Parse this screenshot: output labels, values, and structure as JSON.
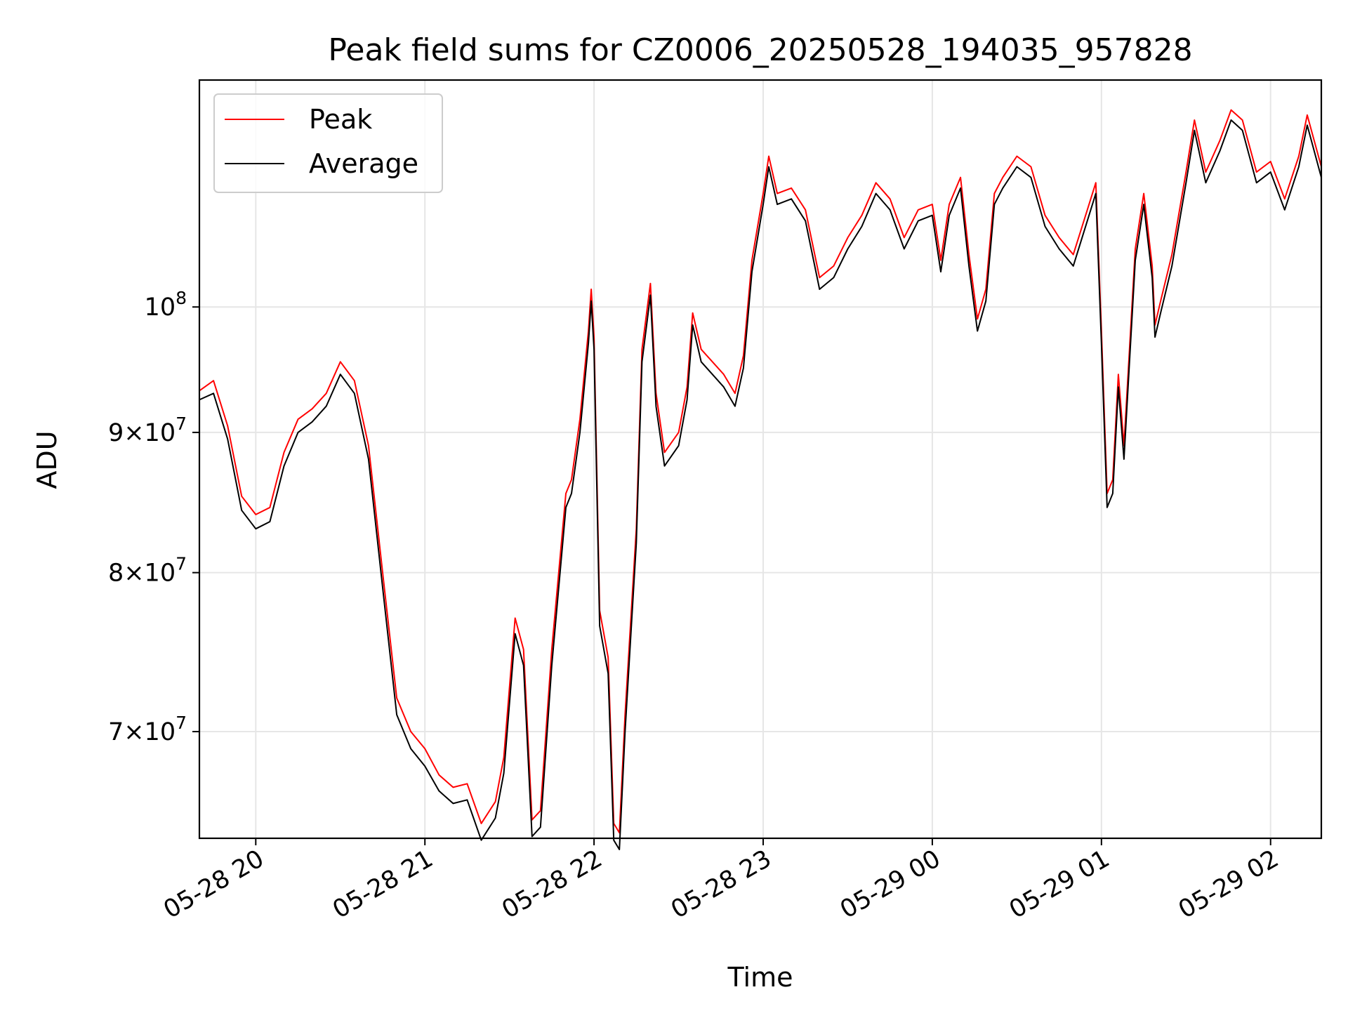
{
  "chart_data": {
    "type": "line",
    "title": "Peak field sums for CZ0006_20250528_194035_957828",
    "xlabel": "Time",
    "ylabel": "ADU",
    "y_scale": "log",
    "grid": true,
    "legend_placement": "top-left",
    "xlim": [
      "2025-05-28 19:40",
      "2025-05-29 02:18"
    ],
    "ylim": [
      64000000,
      121000000
    ],
    "x_ticks": [
      {
        "value": "2025-05-28 20:00",
        "label": "05-28 20"
      },
      {
        "value": "2025-05-28 21:00",
        "label": "05-28 21"
      },
      {
        "value": "2025-05-28 22:00",
        "label": "05-28 22"
      },
      {
        "value": "2025-05-28 23:00",
        "label": "05-28 23"
      },
      {
        "value": "2025-05-29 00:00",
        "label": "05-29 00"
      },
      {
        "value": "2025-05-29 01:00",
        "label": "05-29 01"
      },
      {
        "value": "2025-05-29 02:00",
        "label": "05-29 02"
      }
    ],
    "y_ticks": [
      {
        "value": 70000000,
        "base": "7",
        "exp": "7"
      },
      {
        "value": 80000000,
        "base": "8",
        "exp": "7"
      },
      {
        "value": 90000000,
        "base": "9",
        "exp": "7"
      },
      {
        "value": 100000000,
        "base": "",
        "exp": "8"
      }
    ],
    "series": [
      {
        "name": "Peak",
        "color": "#ff0000",
        "points": [
          [
            "2025-05-28 19:40",
            93200000.0
          ],
          [
            "2025-05-28 19:45",
            94000000.0
          ],
          [
            "2025-05-28 19:50",
            90500000.0
          ],
          [
            "2025-05-28 19:55",
            85300000.0
          ],
          [
            "2025-05-28 20:00",
            84000000.0
          ],
          [
            "2025-05-28 20:05",
            84500000.0
          ],
          [
            "2025-05-28 20:10",
            88500000.0
          ],
          [
            "2025-05-28 20:15",
            91000000.0
          ],
          [
            "2025-05-28 20:20",
            91800000.0
          ],
          [
            "2025-05-28 20:25",
            93000000.0
          ],
          [
            "2025-05-28 20:30",
            95500000.0
          ],
          [
            "2025-05-28 20:35",
            94000000.0
          ],
          [
            "2025-05-28 20:40",
            89000000.0
          ],
          [
            "2025-05-28 20:45",
            80000000.0
          ],
          [
            "2025-05-28 20:50",
            72000000.0
          ],
          [
            "2025-05-28 20:55",
            70000000.0
          ],
          [
            "2025-05-28 21:00",
            69000000.0
          ],
          [
            "2025-05-28 21:05",
            67500000.0
          ],
          [
            "2025-05-28 21:10",
            66800000.0
          ],
          [
            "2025-05-28 21:15",
            67000000.0
          ],
          [
            "2025-05-28 21:20",
            64800000.0
          ],
          [
            "2025-05-28 21:25",
            66000000.0
          ],
          [
            "2025-05-28 21:28",
            68500000.0
          ],
          [
            "2025-05-28 21:32",
            77000000.0
          ],
          [
            "2025-05-28 21:35",
            75000000.0
          ],
          [
            "2025-05-28 21:38",
            65000000.0
          ],
          [
            "2025-05-28 21:41",
            65500000.0
          ],
          [
            "2025-05-28 21:45",
            75000000.0
          ],
          [
            "2025-05-28 21:50",
            85500000.0
          ],
          [
            "2025-05-28 21:52",
            86500000.0
          ],
          [
            "2025-05-28 21:55",
            91000000.0
          ],
          [
            "2025-05-28 21:58",
            98000000.0
          ],
          [
            "2025-05-28 21:59",
            101500000.0
          ],
          [
            "2025-05-28 22:00",
            97500000.0
          ],
          [
            "2025-05-28 22:02",
            77500000.0
          ],
          [
            "2025-05-28 22:05",
            74500000.0
          ],
          [
            "2025-05-28 22:07",
            64800000.0
          ],
          [
            "2025-05-28 22:09",
            64300000.0
          ],
          [
            "2025-05-28 22:11",
            71000000.0
          ],
          [
            "2025-05-28 22:15",
            83000000.0
          ],
          [
            "2025-05-28 22:17",
            96500000.0
          ],
          [
            "2025-05-28 22:20",
            102000000.0
          ],
          [
            "2025-05-28 22:22",
            93000000.0
          ],
          [
            "2025-05-28 22:25",
            88500000.0
          ],
          [
            "2025-05-28 22:30",
            90000000.0
          ],
          [
            "2025-05-28 22:33",
            93500000.0
          ],
          [
            "2025-05-28 22:35",
            99500000.0
          ],
          [
            "2025-05-28 22:38",
            96500000.0
          ],
          [
            "2025-05-28 22:42",
            95500000.0
          ],
          [
            "2025-05-28 22:46",
            94500000.0
          ],
          [
            "2025-05-28 22:50",
            93000000.0
          ],
          [
            "2025-05-28 22:53",
            96000000.0
          ],
          [
            "2025-05-28 22:56",
            104000000.0
          ],
          [
            "2025-05-28 23:00",
            110000000.0
          ],
          [
            "2025-05-28 23:02",
            113500000.0
          ],
          [
            "2025-05-28 23:05",
            110000000.0
          ],
          [
            "2025-05-28 23:10",
            110500000.0
          ],
          [
            "2025-05-28 23:15",
            108500000.0
          ],
          [
            "2025-05-28 23:20",
            102500000.0
          ],
          [
            "2025-05-28 23:25",
            103500000.0
          ],
          [
            "2025-05-28 23:30",
            106000000.0
          ],
          [
            "2025-05-28 23:35",
            108000000.0
          ],
          [
            "2025-05-28 23:40",
            111000000.0
          ],
          [
            "2025-05-28 23:45",
            109500000.0
          ],
          [
            "2025-05-28 23:50",
            106000000.0
          ],
          [
            "2025-05-28 23:55",
            108500000.0
          ],
          [
            "2025-05-29 00:00",
            109000000.0
          ],
          [
            "2025-05-29 00:03",
            104000000.0
          ],
          [
            "2025-05-29 00:06",
            109000000.0
          ],
          [
            "2025-05-29 00:10",
            111500000.0
          ],
          [
            "2025-05-29 00:13",
            104500000.0
          ],
          [
            "2025-05-29 00:16",
            99000000.0
          ],
          [
            "2025-05-29 00:19",
            101500000.0
          ],
          [
            "2025-05-29 00:22",
            110000000.0
          ],
          [
            "2025-05-29 00:25",
            111500000.0
          ],
          [
            "2025-05-29 00:30",
            113500000.0
          ],
          [
            "2025-05-29 00:35",
            112500000.0
          ],
          [
            "2025-05-29 00:40",
            108000000.0
          ],
          [
            "2025-05-29 00:45",
            106000000.0
          ],
          [
            "2025-05-29 00:50",
            104500000.0
          ],
          [
            "2025-05-29 00:55",
            108500000.0
          ],
          [
            "2025-05-29 00:58",
            111000000.0
          ],
          [
            "2025-05-29 01:00",
            98000000.0
          ],
          [
            "2025-05-29 01:02",
            85500000.0
          ],
          [
            "2025-05-29 01:04",
            86500000.0
          ],
          [
            "2025-05-29 01:06",
            94500000.0
          ],
          [
            "2025-05-29 01:08",
            89000000.0
          ],
          [
            "2025-05-29 01:12",
            105000000.0
          ],
          [
            "2025-05-29 01:15",
            110000000.0
          ],
          [
            "2025-05-29 01:18",
            103500000.0
          ],
          [
            "2025-05-29 01:19",
            98500000.0
          ],
          [
            "2025-05-29 01:21",
            100500000.0
          ],
          [
            "2025-05-29 01:25",
            104500000.0
          ],
          [
            "2025-05-29 01:30",
            112000000.0
          ],
          [
            "2025-05-29 01:33",
            117000000.0
          ],
          [
            "2025-05-29 01:37",
            112000000.0
          ],
          [
            "2025-05-29 01:42",
            115000000.0
          ],
          [
            "2025-05-29 01:46",
            118000000.0
          ],
          [
            "2025-05-29 01:50",
            117000000.0
          ],
          [
            "2025-05-29 01:55",
            112000000.0
          ],
          [
            "2025-05-29 02:00",
            113000000.0
          ],
          [
            "2025-05-29 02:05",
            109500000.0
          ],
          [
            "2025-05-29 02:10",
            113500000.0
          ],
          [
            "2025-05-29 02:13",
            117500000.0
          ],
          [
            "2025-05-29 02:18",
            112500000.0
          ]
        ]
      },
      {
        "name": "Average",
        "color": "#000000",
        "points": [
          [
            "2025-05-28 19:40",
            92500000.0
          ],
          [
            "2025-05-28 19:45",
            93000000.0
          ],
          [
            "2025-05-28 19:50",
            89500000.0
          ],
          [
            "2025-05-28 19:55",
            84300000.0
          ],
          [
            "2025-05-28 20:00",
            83000000.0
          ],
          [
            "2025-05-28 20:05",
            83500000.0
          ],
          [
            "2025-05-28 20:10",
            87500000.0
          ],
          [
            "2025-05-28 20:15",
            90000000.0
          ],
          [
            "2025-05-28 20:20",
            90800000.0
          ],
          [
            "2025-05-28 20:25",
            92000000.0
          ],
          [
            "2025-05-28 20:30",
            94500000.0
          ],
          [
            "2025-05-28 20:35",
            93000000.0
          ],
          [
            "2025-05-28 20:40",
            88000000.0
          ],
          [
            "2025-05-28 20:45",
            79000000.0
          ],
          [
            "2025-05-28 20:50",
            71000000.0
          ],
          [
            "2025-05-28 20:55",
            69000000.0
          ],
          [
            "2025-05-28 21:00",
            68000000.0
          ],
          [
            "2025-05-28 21:05",
            66600000.0
          ],
          [
            "2025-05-28 21:10",
            65900000.0
          ],
          [
            "2025-05-28 21:15",
            66100000.0
          ],
          [
            "2025-05-28 21:20",
            63900000.0
          ],
          [
            "2025-05-28 21:25",
            65100000.0
          ],
          [
            "2025-05-28 21:28",
            67600000.0
          ],
          [
            "2025-05-28 21:32",
            76000000.0
          ],
          [
            "2025-05-28 21:35",
            74000000.0
          ],
          [
            "2025-05-28 21:38",
            64100000.0
          ],
          [
            "2025-05-28 21:41",
            64600000.0
          ],
          [
            "2025-05-28 21:45",
            74000000.0
          ],
          [
            "2025-05-28 21:50",
            84500000.0
          ],
          [
            "2025-05-28 21:52",
            85500000.0
          ],
          [
            "2025-05-28 21:55",
            90000000.0
          ],
          [
            "2025-05-28 21:58",
            97000000.0
          ],
          [
            "2025-05-28 21:59",
            100500000.0
          ],
          [
            "2025-05-28 22:00",
            96500000.0
          ],
          [
            "2025-05-28 22:02",
            76500000.0
          ],
          [
            "2025-05-28 22:05",
            73500000.0
          ],
          [
            "2025-05-28 22:07",
            63900000.0
          ],
          [
            "2025-05-28 22:09",
            63400000.0
          ],
          [
            "2025-05-28 22:11",
            70000000.0
          ],
          [
            "2025-05-28 22:15",
            82000000.0
          ],
          [
            "2025-05-28 22:17",
            95500000.0
          ],
          [
            "2025-05-28 22:20",
            101000000.0
          ],
          [
            "2025-05-28 22:22",
            92000000.0
          ],
          [
            "2025-05-28 22:25",
            87500000.0
          ],
          [
            "2025-05-28 22:30",
            89000000.0
          ],
          [
            "2025-05-28 22:33",
            92500000.0
          ],
          [
            "2025-05-28 22:35",
            98500000.0
          ],
          [
            "2025-05-28 22:38",
            95500000.0
          ],
          [
            "2025-05-28 22:42",
            94500000.0
          ],
          [
            "2025-05-28 22:46",
            93500000.0
          ],
          [
            "2025-05-28 22:50",
            92000000.0
          ],
          [
            "2025-05-28 22:53",
            95000000.0
          ],
          [
            "2025-05-28 22:56",
            103000000.0
          ],
          [
            "2025-05-28 23:00",
            109000000.0
          ],
          [
            "2025-05-28 23:02",
            112500000.0
          ],
          [
            "2025-05-28 23:05",
            109000000.0
          ],
          [
            "2025-05-28 23:10",
            109500000.0
          ],
          [
            "2025-05-28 23:15",
            107500000.0
          ],
          [
            "2025-05-28 23:20",
            101500000.0
          ],
          [
            "2025-05-28 23:25",
            102500000.0
          ],
          [
            "2025-05-28 23:30",
            105000000.0
          ],
          [
            "2025-05-28 23:35",
            107000000.0
          ],
          [
            "2025-05-28 23:40",
            110000000.0
          ],
          [
            "2025-05-28 23:45",
            108500000.0
          ],
          [
            "2025-05-28 23:50",
            105000000.0
          ],
          [
            "2025-05-28 23:55",
            107500000.0
          ],
          [
            "2025-05-29 00:00",
            108000000.0
          ],
          [
            "2025-05-29 00:03",
            103000000.0
          ],
          [
            "2025-05-29 00:06",
            108000000.0
          ],
          [
            "2025-05-29 00:10",
            110500000.0
          ],
          [
            "2025-05-29 00:13",
            103500000.0
          ],
          [
            "2025-05-29 00:16",
            98000000.0
          ],
          [
            "2025-05-29 00:19",
            100500000.0
          ],
          [
            "2025-05-29 00:22",
            109000000.0
          ],
          [
            "2025-05-29 00:25",
            110500000.0
          ],
          [
            "2025-05-29 00:30",
            112500000.0
          ],
          [
            "2025-05-29 00:35",
            111500000.0
          ],
          [
            "2025-05-29 00:40",
            107000000.0
          ],
          [
            "2025-05-29 00:45",
            105000000.0
          ],
          [
            "2025-05-29 00:50",
            103500000.0
          ],
          [
            "2025-05-29 00:55",
            107500000.0
          ],
          [
            "2025-05-29 00:58",
            110000000.0
          ],
          [
            "2025-05-29 01:00",
            97000000.0
          ],
          [
            "2025-05-29 01:02",
            84500000.0
          ],
          [
            "2025-05-29 01:04",
            85500000.0
          ],
          [
            "2025-05-29 01:06",
            93500000.0
          ],
          [
            "2025-05-29 01:08",
            88000000.0
          ],
          [
            "2025-05-29 01:12",
            104000000.0
          ],
          [
            "2025-05-29 01:15",
            109000000.0
          ],
          [
            "2025-05-29 01:18",
            102500000.0
          ],
          [
            "2025-05-29 01:19",
            97500000.0
          ],
          [
            "2025-05-29 01:21",
            99500000.0
          ],
          [
            "2025-05-29 01:25",
            103500000.0
          ],
          [
            "2025-05-29 01:30",
            111000000.0
          ],
          [
            "2025-05-29 01:33",
            116000000.0
          ],
          [
            "2025-05-29 01:37",
            111000000.0
          ],
          [
            "2025-05-29 01:42",
            114000000.0
          ],
          [
            "2025-05-29 01:46",
            117000000.0
          ],
          [
            "2025-05-29 01:50",
            116000000.0
          ],
          [
            "2025-05-29 01:55",
            111000000.0
          ],
          [
            "2025-05-29 02:00",
            112000000.0
          ],
          [
            "2025-05-29 02:05",
            108500000.0
          ],
          [
            "2025-05-29 02:10",
            112500000.0
          ],
          [
            "2025-05-29 02:13",
            116500000.0
          ],
          [
            "2025-05-29 02:18",
            111500000.0
          ]
        ]
      }
    ]
  }
}
